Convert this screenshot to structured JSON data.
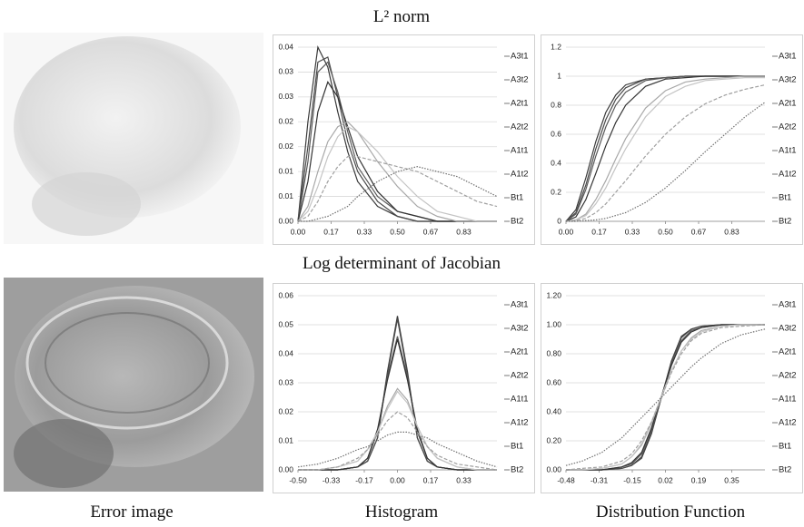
{
  "figure": {
    "rows": [
      "L² norm",
      "Log determinant of Jacobian"
    ],
    "columns": [
      "Error image",
      "Histogram",
      "Distribution Function"
    ]
  },
  "chart_data": [
    {
      "type": "line",
      "grid": true,
      "x": [
        0,
        0.05,
        0.1,
        0.15,
        0.2,
        0.25,
        0.3,
        0.4,
        0.5,
        0.6,
        0.7,
        0.8,
        0.9,
        1.0
      ],
      "xlim": [
        0,
        1
      ],
      "xticks": [
        {
          "value": 0,
          "label": "0.00"
        },
        {
          "value": 0.1667,
          "label": "0.17"
        },
        {
          "value": 0.3333,
          "label": "0.33"
        },
        {
          "value": 0.5,
          "label": "0.50"
        },
        {
          "value": 0.6667,
          "label": "0.67"
        },
        {
          "value": 0.8333,
          "label": "0.83"
        }
      ],
      "ylim": [
        0,
        0.035
      ],
      "yticks": [
        {
          "value": 0,
          "label": "0.00"
        },
        {
          "value": 0.005,
          "label": "0.01"
        },
        {
          "value": 0.01,
          "label": "0.01"
        },
        {
          "value": 0.015,
          "label": "0.02"
        },
        {
          "value": 0.02,
          "label": "0.02"
        },
        {
          "value": 0.025,
          "label": "0.03"
        },
        {
          "value": 0.03,
          "label": "0.03"
        },
        {
          "value": 0.035,
          "label": "0.04"
        }
      ],
      "series": [
        {
          "name": "A3t1",
          "color": "#3a3a3a",
          "dash": "solid",
          "values": [
            0,
            0.02,
            0.035,
            0.031,
            0.022,
            0.014,
            0.008,
            0.003,
            0.001,
            0,
            0,
            0,
            0,
            0
          ]
        },
        {
          "name": "A3t2",
          "color": "#4a4a4a",
          "dash": "solid",
          "values": [
            0,
            0.015,
            0.032,
            0.033,
            0.025,
            0.016,
            0.01,
            0.004,
            0.001,
            0,
            0,
            0,
            0,
            0
          ]
        },
        {
          "name": "A2t1",
          "color": "#5a5a5a",
          "dash": "solid",
          "values": [
            0,
            0.012,
            0.03,
            0.032,
            0.026,
            0.018,
            0.011,
            0.005,
            0.002,
            0.001,
            0,
            0,
            0,
            0
          ]
        },
        {
          "name": "A2t2",
          "color": "#333333",
          "dash": "solid",
          "values": [
            0,
            0.008,
            0.022,
            0.028,
            0.025,
            0.019,
            0.013,
            0.006,
            0.002,
            0.001,
            0,
            0,
            0,
            0
          ]
        },
        {
          "name": "A1t1",
          "color": "#a8a8a8",
          "dash": "solid",
          "values": [
            0,
            0.003,
            0.01,
            0.016,
            0.019,
            0.02,
            0.018,
            0.012,
            0.007,
            0.003,
            0.001,
            0,
            0,
            0
          ]
        },
        {
          "name": "A1t2",
          "color": "#c4c4c4",
          "dash": "solid",
          "values": [
            0,
            0.002,
            0.007,
            0.013,
            0.017,
            0.019,
            0.018,
            0.014,
            0.009,
            0.005,
            0.002,
            0.001,
            0,
            0
          ]
        },
        {
          "name": "Bt1",
          "color": "#a0a0a0",
          "dash": "dashed",
          "values": [
            0,
            0.001,
            0.004,
            0.008,
            0.011,
            0.013,
            0.013,
            0.012,
            0.011,
            0.01,
            0.008,
            0.006,
            0.004,
            0.003
          ]
        },
        {
          "name": "Bt2",
          "color": "#707070",
          "dash": "dotted",
          "values": [
            0,
            0,
            0.0005,
            0.001,
            0.002,
            0.003,
            0.005,
            0.008,
            0.01,
            0.011,
            0.01,
            0.009,
            0.007,
            0.005
          ]
        }
      ]
    },
    {
      "type": "line",
      "grid": true,
      "x": [
        0,
        0.05,
        0.1,
        0.15,
        0.2,
        0.25,
        0.3,
        0.4,
        0.5,
        0.6,
        0.7,
        0.8,
        0.9,
        1.0
      ],
      "xlim": [
        0,
        1
      ],
      "xticks": [
        {
          "value": 0,
          "label": "0.00"
        },
        {
          "value": 0.1667,
          "label": "0.17"
        },
        {
          "value": 0.3333,
          "label": "0.33"
        },
        {
          "value": 0.5,
          "label": "0.50"
        },
        {
          "value": 0.6667,
          "label": "0.67"
        },
        {
          "value": 0.8333,
          "label": "0.83"
        }
      ],
      "ylim": [
        0,
        1.2
      ],
      "yticks": [
        0,
        0.2,
        0.4,
        0.6,
        0.8,
        1,
        1.2
      ],
      "series": [
        {
          "name": "A3t1",
          "color": "#3a3a3a",
          "dash": "solid",
          "values": [
            0,
            0.08,
            0.3,
            0.55,
            0.75,
            0.87,
            0.94,
            0.98,
            0.99,
            1,
            1,
            1,
            1,
            1
          ]
        },
        {
          "name": "A3t2",
          "color": "#4a4a4a",
          "dash": "solid",
          "values": [
            0,
            0.06,
            0.25,
            0.5,
            0.7,
            0.84,
            0.92,
            0.98,
            0.99,
            1,
            1,
            1,
            1,
            1
          ]
        },
        {
          "name": "A2t1",
          "color": "#5a5a5a",
          "dash": "solid",
          "values": [
            0,
            0.05,
            0.22,
            0.45,
            0.65,
            0.8,
            0.89,
            0.97,
            0.99,
            1,
            1,
            1,
            1,
            1
          ]
        },
        {
          "name": "A2t2",
          "color": "#333333",
          "dash": "solid",
          "values": [
            0,
            0.03,
            0.15,
            0.33,
            0.52,
            0.68,
            0.8,
            0.93,
            0.98,
            0.99,
            1,
            1,
            1,
            1
          ]
        },
        {
          "name": "A1t1",
          "color": "#a8a8a8",
          "dash": "solid",
          "values": [
            0,
            0.01,
            0.05,
            0.15,
            0.28,
            0.43,
            0.57,
            0.78,
            0.9,
            0.96,
            0.98,
            0.99,
            1,
            1
          ]
        },
        {
          "name": "A1t2",
          "color": "#c4c4c4",
          "dash": "solid",
          "values": [
            0,
            0.01,
            0.04,
            0.12,
            0.23,
            0.37,
            0.5,
            0.72,
            0.86,
            0.93,
            0.97,
            0.98,
            0.99,
            0.99
          ]
        },
        {
          "name": "Bt1",
          "color": "#a0a0a0",
          "dash": "dashed",
          "values": [
            0,
            0.005,
            0.02,
            0.06,
            0.12,
            0.2,
            0.28,
            0.45,
            0.6,
            0.72,
            0.81,
            0.87,
            0.91,
            0.94
          ]
        },
        {
          "name": "Bt2",
          "color": "#707070",
          "dash": "dotted",
          "values": [
            0,
            0,
            0.005,
            0.01,
            0.02,
            0.04,
            0.06,
            0.13,
            0.23,
            0.35,
            0.48,
            0.6,
            0.72,
            0.82
          ]
        }
      ]
    },
    {
      "type": "line",
      "grid": true,
      "x": [
        -0.5,
        -0.4,
        -0.3,
        -0.2,
        -0.15,
        -0.1,
        -0.05,
        0,
        0.05,
        0.1,
        0.15,
        0.2,
        0.3,
        0.4,
        0.5
      ],
      "xlim": [
        -0.5,
        0.5
      ],
      "xticks": [
        {
          "value": -0.5,
          "label": "-0.50"
        },
        {
          "value": -0.3333,
          "label": "-0.33"
        },
        {
          "value": -0.1667,
          "label": "-0.17"
        },
        {
          "value": 0,
          "label": "0.00"
        },
        {
          "value": 0.1667,
          "label": "0.17"
        },
        {
          "value": 0.3333,
          "label": "0.33"
        }
      ],
      "ylim": [
        0,
        0.06
      ],
      "yticks": [
        {
          "value": 0,
          "label": "0.00"
        },
        {
          "value": 0.01,
          "label": "0.01"
        },
        {
          "value": 0.02,
          "label": "0.02"
        },
        {
          "value": 0.03,
          "label": "0.03"
        },
        {
          "value": 0.04,
          "label": "0.04"
        },
        {
          "value": 0.05,
          "label": "0.05"
        },
        {
          "value": 0.06,
          "label": "0.06"
        }
      ],
      "series": [
        {
          "name": "A3t1",
          "color": "#3a3a3a",
          "dash": "solid",
          "values": [
            0,
            0,
            0,
            0.001,
            0.003,
            0.011,
            0.034,
            0.053,
            0.034,
            0.011,
            0.003,
            0.001,
            0,
            0,
            0
          ]
        },
        {
          "name": "A3t2",
          "color": "#4a4a4a",
          "dash": "solid",
          "values": [
            0,
            0,
            0,
            0.001,
            0.003,
            0.011,
            0.033,
            0.052,
            0.033,
            0.011,
            0.003,
            0.001,
            0,
            0,
            0
          ]
        },
        {
          "name": "A2t1",
          "color": "#5a5a5a",
          "dash": "solid",
          "values": [
            0,
            0,
            0,
            0.001,
            0.004,
            0.013,
            0.032,
            0.046,
            0.032,
            0.013,
            0.004,
            0.001,
            0,
            0,
            0
          ]
        },
        {
          "name": "A2t2",
          "color": "#333333",
          "dash": "solid",
          "values": [
            0,
            0,
            0,
            0.001,
            0.004,
            0.014,
            0.031,
            0.045,
            0.031,
            0.014,
            0.004,
            0.001,
            0,
            0,
            0
          ]
        },
        {
          "name": "A1t1",
          "color": "#a8a8a8",
          "dash": "solid",
          "values": [
            0,
            0,
            0.001,
            0.003,
            0.007,
            0.013,
            0.022,
            0.028,
            0.024,
            0.015,
            0.008,
            0.004,
            0.001,
            0,
            0
          ]
        },
        {
          "name": "A1t2",
          "color": "#c4c4c4",
          "dash": "solid",
          "values": [
            0,
            0,
            0.001,
            0.003,
            0.007,
            0.013,
            0.021,
            0.027,
            0.023,
            0.015,
            0.008,
            0.004,
            0.001,
            0,
            0
          ]
        },
        {
          "name": "Bt1",
          "color": "#a0a0a0",
          "dash": "dashed",
          "values": [
            0,
            0,
            0.001,
            0.004,
            0.007,
            0.012,
            0.017,
            0.02,
            0.018,
            0.013,
            0.008,
            0.005,
            0.002,
            0.001,
            0
          ]
        },
        {
          "name": "Bt2",
          "color": "#707070",
          "dash": "dotted",
          "values": [
            0.001,
            0.002,
            0.004,
            0.007,
            0.008,
            0.01,
            0.012,
            0.013,
            0.013,
            0.012,
            0.011,
            0.009,
            0.006,
            0.003,
            0.001
          ]
        }
      ]
    },
    {
      "type": "line",
      "grid": true,
      "x": [
        -0.48,
        -0.4,
        -0.3,
        -0.2,
        -0.15,
        -0.1,
        -0.05,
        0,
        0.05,
        0.1,
        0.15,
        0.2,
        0.3,
        0.4,
        0.52
      ],
      "xlim": [
        -0.48,
        0.52
      ],
      "xticks": [
        -0.48,
        {
          "value": -0.3133,
          "label": "-0.31"
        },
        {
          "value": -0.1467,
          "label": "-0.15"
        },
        0.02,
        {
          "value": 0.1867,
          "label": "0.19"
        },
        {
          "value": 0.3533,
          "label": "0.35"
        }
      ],
      "ylim": [
        0,
        1.2
      ],
      "yticks": [
        {
          "value": 0,
          "label": "0.00"
        },
        {
          "value": 0.2,
          "label": "0.20"
        },
        {
          "value": 0.4,
          "label": "0.40"
        },
        {
          "value": 0.6,
          "label": "0.60"
        },
        {
          "value": 0.8,
          "label": "0.80"
        },
        {
          "value": 1,
          "label": "1.00"
        },
        {
          "value": 1.2,
          "label": "1.20"
        }
      ],
      "series": [
        {
          "name": "A3t1",
          "color": "#3a3a3a",
          "dash": "solid",
          "values": [
            0,
            0,
            0,
            0.01,
            0.03,
            0.08,
            0.25,
            0.5,
            0.75,
            0.92,
            0.97,
            0.99,
            1,
            1,
            1
          ]
        },
        {
          "name": "A3t2",
          "color": "#4a4a4a",
          "dash": "solid",
          "values": [
            0,
            0,
            0,
            0.01,
            0.03,
            0.09,
            0.26,
            0.5,
            0.74,
            0.91,
            0.97,
            0.99,
            1,
            1,
            1
          ]
        },
        {
          "name": "A2t1",
          "color": "#5a5a5a",
          "dash": "solid",
          "values": [
            0,
            0,
            0,
            0.02,
            0.04,
            0.11,
            0.28,
            0.5,
            0.72,
            0.89,
            0.96,
            0.98,
            1,
            1,
            1
          ]
        },
        {
          "name": "A2t2",
          "color": "#333333",
          "dash": "solid",
          "values": [
            0,
            0,
            0,
            0.02,
            0.05,
            0.12,
            0.29,
            0.51,
            0.72,
            0.88,
            0.95,
            0.98,
            1,
            1,
            1
          ]
        },
        {
          "name": "A1t1",
          "color": "#a8a8a8",
          "dash": "solid",
          "values": [
            0,
            0,
            0.01,
            0.04,
            0.09,
            0.17,
            0.32,
            0.5,
            0.68,
            0.82,
            0.91,
            0.96,
            0.99,
            1,
            1
          ]
        },
        {
          "name": "A1t2",
          "color": "#c4c4c4",
          "dash": "solid",
          "values": [
            0,
            0,
            0.01,
            0.04,
            0.09,
            0.18,
            0.33,
            0.51,
            0.68,
            0.82,
            0.9,
            0.95,
            0.99,
            1,
            1
          ]
        },
        {
          "name": "Bt1",
          "color": "#a0a0a0",
          "dash": "dashed",
          "values": [
            0,
            0.01,
            0.02,
            0.06,
            0.11,
            0.2,
            0.33,
            0.5,
            0.67,
            0.8,
            0.89,
            0.94,
            0.98,
            0.99,
            1
          ]
        },
        {
          "name": "Bt2",
          "color": "#707070",
          "dash": "dotted",
          "values": [
            0.03,
            0.06,
            0.12,
            0.22,
            0.29,
            0.36,
            0.43,
            0.5,
            0.57,
            0.64,
            0.71,
            0.77,
            0.87,
            0.93,
            0.97
          ]
        }
      ]
    }
  ]
}
